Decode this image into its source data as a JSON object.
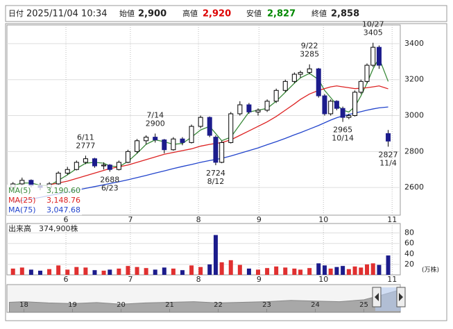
{
  "header": {
    "date_label": "日付",
    "date": "2025/11/04 10:34",
    "open_label": "始値",
    "open": "2,900",
    "high_label": "高値",
    "high": "2,920",
    "low_label": "安値",
    "low": "2,827",
    "close_label": "終値",
    "close": "2,858"
  },
  "chart_data": [
    {
      "type": "candlestick",
      "x": [
        0,
        3,
        6,
        9,
        12,
        15,
        18,
        21,
        24,
        27,
        30,
        32,
        35,
        38,
        41,
        44,
        47,
        50,
        53,
        56,
        59,
        62,
        65,
        67,
        69,
        72,
        75,
        78,
        81,
        84,
        87,
        90,
        93,
        95,
        98,
        101,
        103,
        105,
        107,
        109,
        111,
        113,
        115,
        117,
        119,
        121,
        124
      ],
      "open": [
        2600,
        2620,
        2640,
        2610,
        2600,
        2620,
        2680,
        2700,
        2740,
        2760,
        2720,
        2725,
        2700,
        2740,
        2800,
        2860,
        2880,
        2865,
        2810,
        2870,
        2850,
        2940,
        2990,
        2880,
        2740,
        2850,
        3010,
        3060,
        3020,
        3030,
        3080,
        3140,
        3190,
        3230,
        3240,
        3260,
        3110,
        3010,
        3080,
        3040,
        2990,
        3000,
        3130,
        3190,
        3280,
        3380,
        2900
      ],
      "high": [
        2630,
        2655,
        2645,
        2625,
        2630,
        2690,
        2715,
        2750,
        2777,
        2765,
        2740,
        2730,
        2750,
        2810,
        2870,
        2890,
        2900,
        2870,
        2880,
        2880,
        2950,
        3000,
        2995,
        2890,
        2860,
        3020,
        3080,
        3070,
        3040,
        3090,
        3150,
        3200,
        3240,
        3250,
        3285,
        3265,
        3120,
        3090,
        3085,
        3050,
        3010,
        3140,
        3200,
        3290,
        3405,
        3390,
        2920
      ],
      "low": [
        2590,
        2610,
        2600,
        2585,
        2595,
        2615,
        2670,
        2695,
        2730,
        2710,
        2700,
        2688,
        2695,
        2735,
        2790,
        2840,
        2850,
        2790,
        2805,
        2835,
        2845,
        2930,
        2880,
        2724,
        2735,
        2845,
        3000,
        3010,
        3000,
        3020,
        3070,
        3130,
        3180,
        3210,
        3230,
        3100,
        3000,
        3000,
        3030,
        2965,
        2980,
        2995,
        3120,
        3180,
        3270,
        3260,
        2827
      ],
      "close": [
        2620,
        2640,
        2610,
        2600,
        2620,
        2680,
        2700,
        2740,
        2760,
        2720,
        2725,
        2700,
        2740,
        2800,
        2860,
        2880,
        2865,
        2810,
        2870,
        2850,
        2940,
        2990,
        2890,
        2740,
        2850,
        3010,
        3060,
        3020,
        3030,
        3080,
        3140,
        3190,
        3230,
        3240,
        3260,
        3110,
        3010,
        3080,
        3040,
        2990,
        3000,
        3130,
        3190,
        3280,
        3380,
        3280,
        2858
      ],
      "up_color": "#ffffff",
      "down_color": "#1c1c8c",
      "series": [
        {
          "name": "MA(5)",
          "color": "#3a8a3a",
          "current": {
            "value": 3190.6,
            "label": "3,190.60"
          },
          "values": [
            2610,
            2625,
            2625,
            2612,
            2610,
            2640,
            2670,
            2705,
            2735,
            2740,
            2735,
            2720,
            2715,
            2745,
            2790,
            2840,
            2865,
            2855,
            2840,
            2845,
            2880,
            2920,
            2940,
            2900,
            2860,
            2880,
            2950,
            3020,
            3030,
            3040,
            3080,
            3130,
            3180,
            3210,
            3235,
            3200,
            3140,
            3100,
            3060,
            3030,
            3020,
            3050,
            3110,
            3180,
            3260,
            3320,
            3190
          ]
        },
        {
          "name": "MA(25)",
          "color": "#dd2222",
          "current": {
            "value": 3148.76,
            "label": "3,148.76"
          },
          "values": [
            null,
            null,
            null,
            null,
            2615,
            2625,
            2635,
            2650,
            2665,
            2680,
            2695,
            2705,
            2715,
            2725,
            2740,
            2755,
            2770,
            2785,
            2795,
            2805,
            2815,
            2830,
            2840,
            2845,
            2850,
            2865,
            2890,
            2915,
            2940,
            2965,
            2995,
            3030,
            3065,
            3090,
            3120,
            3140,
            3150,
            3160,
            3165,
            3160,
            3155,
            3150,
            3152,
            3155,
            3160,
            3165,
            3149
          ]
        },
        {
          "name": "MA(75)",
          "color": "#2244cc",
          "current": {
            "value": 3047.68,
            "label": "3,047.68"
          },
          "values": [
            2520,
            2528,
            2536,
            2545,
            2555,
            2565,
            2575,
            2585,
            2595,
            2605,
            2615,
            2622,
            2632,
            2643,
            2655,
            2667,
            2680,
            2692,
            2705,
            2717,
            2728,
            2740,
            2750,
            2756,
            2762,
            2775,
            2790,
            2805,
            2820,
            2838,
            2855,
            2873,
            2893,
            2905,
            2925,
            2945,
            2960,
            2975,
            2988,
            2998,
            3006,
            3014,
            3022,
            3030,
            3037,
            3043,
            3048
          ]
        }
      ],
      "annotations": [
        {
          "date": "6/11",
          "price": 2777,
          "x": 24,
          "pos": "above"
        },
        {
          "date": "6/23",
          "price": 2688,
          "x": 32,
          "pos": "below"
        },
        {
          "date": "7/14",
          "price": 2900,
          "x": 47,
          "pos": "above"
        },
        {
          "date": "8/12",
          "price": 2724,
          "x": 67,
          "pos": "below"
        },
        {
          "date": "9/22",
          "price": 3285,
          "x": 98,
          "pos": "above"
        },
        {
          "date": "10/14",
          "price": 2965,
          "x": 109,
          "pos": "below"
        },
        {
          "date": "10/27",
          "price": 3405,
          "x": 119,
          "pos": "above"
        },
        {
          "date": "11/4",
          "price": 2827,
          "x": 124,
          "pos": "below"
        }
      ],
      "xlim": [
        -2,
        128
      ],
      "xticks": [
        {
          "value": 17.5,
          "label": "6"
        },
        {
          "value": 38.8,
          "label": "7"
        },
        {
          "value": 61.3,
          "label": "8"
        },
        {
          "value": 81.3,
          "label": "9"
        },
        {
          "value": 102.6,
          "label": "10"
        },
        {
          "value": 125.3,
          "label": "11"
        }
      ],
      "ylim": [
        2446,
        3504
      ],
      "yticks": [
        2600,
        2800,
        3000,
        3200,
        3400
      ],
      "grid": true
    },
    {
      "type": "bar",
      "title": "出来高",
      "latest_label": "374,900株",
      "unit": "(万株)",
      "values": [
        12,
        14,
        10,
        8,
        11,
        18,
        10,
        15,
        14,
        9,
        8,
        10,
        12,
        17,
        15,
        13,
        10,
        14,
        12,
        9,
        18,
        15,
        20,
        76,
        24,
        28,
        19,
        12,
        10,
        13,
        16,
        14,
        12,
        10,
        13,
        22,
        18,
        12,
        15,
        17,
        11,
        16,
        14,
        20,
        22,
        19,
        37
      ],
      "ylim": [
        0,
        98
      ],
      "yticks": [
        20,
        40,
        60,
        80
      ],
      "grid": true
    },
    {
      "type": "area",
      "color": "#a8a8a8",
      "x": [
        17.7,
        18,
        18.5,
        19,
        19.5,
        20,
        20.5,
        21,
        21.5,
        22,
        22.5,
        23,
        23.5,
        24,
        24.5,
        25,
        25.3,
        25.75
      ],
      "values": [
        2300,
        2350,
        2250,
        2200,
        2280,
        2150,
        2250,
        2300,
        2350,
        2250,
        2300,
        2350,
        2450,
        2400,
        2350,
        2500,
        2800,
        3300
      ],
      "xlim": [
        17.65,
        25.75
      ],
      "ylim": [
        1500,
        3600
      ],
      "xticks": [
        18,
        19,
        20,
        21,
        22,
        23,
        24,
        25
      ]
    }
  ]
}
